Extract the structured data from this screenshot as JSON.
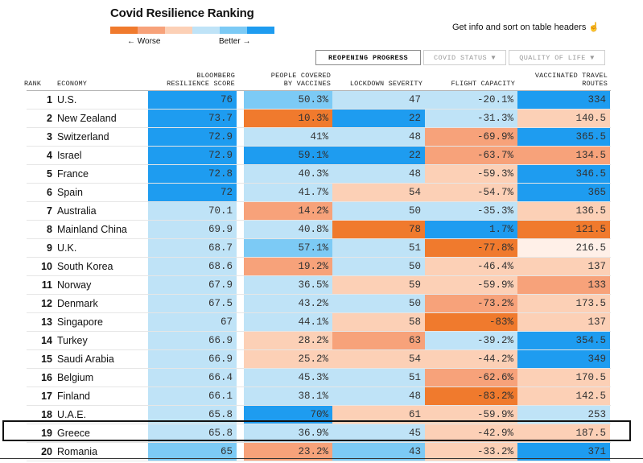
{
  "title": "Covid Resilience Ranking",
  "legend": {
    "worse_label": "← Worse",
    "better_label": "Better →",
    "colors": [
      "#f07a2d",
      "#f7a27a",
      "#fcd0b6",
      "#bfe3f7",
      "#7ccaf5",
      "#1e9cf0"
    ]
  },
  "hint": "Get info and sort on table headers",
  "hint_icon": "pointer-hand-icon",
  "tabs": [
    {
      "label": "REOPENING PROGRESS",
      "active": true
    },
    {
      "label": "COVID STATUS ▼",
      "active": false
    },
    {
      "label": "QUALITY OF LIFE ▼",
      "active": false
    }
  ],
  "columns": {
    "rank": "RANK",
    "economy": "ECONOMY",
    "score_l1": "BLOOMBERG",
    "score_l2": "RESILIENCE SCORE",
    "vacc_l1": "PEOPLE COVERED",
    "vacc_l2": "BY VACCINES",
    "lockdown": "LOCKDOWN SEVERITY",
    "flight": "FLIGHT CAPACITY",
    "routes_l1": "VACCINATED TRAVEL",
    "routes_l2": "ROUTES"
  },
  "chart_data": {
    "type": "table",
    "title": "Covid Resilience Ranking",
    "highlighted_rank": 19,
    "rows": [
      {
        "rank": "1",
        "economy": "U.S.",
        "score": "76",
        "vaccines": "50.3%",
        "lockdown": "47",
        "flight": "-20.1%",
        "routes": "334",
        "colors": [
          "#1e9cf0",
          "#7ccaf5",
          "#bfe3f7",
          "#bfe3f7",
          "#1e9cf0"
        ]
      },
      {
        "rank": "2",
        "economy": "New Zealand",
        "score": "73.7",
        "vaccines": "10.3%",
        "lockdown": "22",
        "flight": "-31.3%",
        "routes": "140.5",
        "colors": [
          "#1e9cf0",
          "#f07a2d",
          "#1e9cf0",
          "#bfe3f7",
          "#fcd0b6"
        ]
      },
      {
        "rank": "3",
        "economy": "Switzerland",
        "score": "72.9",
        "vaccines": "41%",
        "lockdown": "48",
        "flight": "-69.9%",
        "routes": "365.5",
        "colors": [
          "#1e9cf0",
          "#bfe3f7",
          "#bfe3f7",
          "#f7a27a",
          "#1e9cf0"
        ]
      },
      {
        "rank": "4",
        "economy": "Israel",
        "score": "72.9",
        "vaccines": "59.1%",
        "lockdown": "22",
        "flight": "-63.7%",
        "routes": "134.5",
        "colors": [
          "#1e9cf0",
          "#1e9cf0",
          "#1e9cf0",
          "#f7a27a",
          "#f7a27a"
        ]
      },
      {
        "rank": "5",
        "economy": "France",
        "score": "72.8",
        "vaccines": "40.3%",
        "lockdown": "48",
        "flight": "-59.3%",
        "routes": "346.5",
        "colors": [
          "#1e9cf0",
          "#bfe3f7",
          "#bfe3f7",
          "#fcd0b6",
          "#1e9cf0"
        ]
      },
      {
        "rank": "6",
        "economy": "Spain",
        "score": "72",
        "vaccines": "41.7%",
        "lockdown": "54",
        "flight": "-54.7%",
        "routes": "365",
        "colors": [
          "#1e9cf0",
          "#bfe3f7",
          "#fcd0b6",
          "#fcd0b6",
          "#1e9cf0"
        ]
      },
      {
        "rank": "7",
        "economy": "Australia",
        "score": "70.1",
        "vaccines": "14.2%",
        "lockdown": "50",
        "flight": "-35.3%",
        "routes": "136.5",
        "colors": [
          "#bfe3f7",
          "#f7a27a",
          "#bfe3f7",
          "#bfe3f7",
          "#fcd0b6"
        ]
      },
      {
        "rank": "8",
        "economy": "Mainland China",
        "score": "69.9",
        "vaccines": "40.8%",
        "lockdown": "78",
        "flight": "1.7%",
        "routes": "121.5",
        "colors": [
          "#bfe3f7",
          "#bfe3f7",
          "#f07a2d",
          "#1e9cf0",
          "#f07a2d"
        ]
      },
      {
        "rank": "9",
        "economy": "U.K.",
        "score": "68.7",
        "vaccines": "57.1%",
        "lockdown": "51",
        "flight": "-77.8%",
        "routes": "216.5",
        "colors": [
          "#bfe3f7",
          "#7ccaf5",
          "#bfe3f7",
          "#f07a2d",
          "#fff0e8"
        ]
      },
      {
        "rank": "10",
        "economy": "South Korea",
        "score": "68.6",
        "vaccines": "19.2%",
        "lockdown": "50",
        "flight": "-46.4%",
        "routes": "137",
        "colors": [
          "#bfe3f7",
          "#f7a27a",
          "#bfe3f7",
          "#fcd0b6",
          "#fcd0b6"
        ]
      },
      {
        "rank": "11",
        "economy": "Norway",
        "score": "67.9",
        "vaccines": "36.5%",
        "lockdown": "59",
        "flight": "-59.9%",
        "routes": "133",
        "colors": [
          "#bfe3f7",
          "#bfe3f7",
          "#fcd0b6",
          "#fcd0b6",
          "#f7a27a"
        ]
      },
      {
        "rank": "12",
        "economy": "Denmark",
        "score": "67.5",
        "vaccines": "43.2%",
        "lockdown": "50",
        "flight": "-73.2%",
        "routes": "173.5",
        "colors": [
          "#bfe3f7",
          "#bfe3f7",
          "#bfe3f7",
          "#f7a27a",
          "#fcd0b6"
        ]
      },
      {
        "rank": "13",
        "economy": "Singapore",
        "score": "67",
        "vaccines": "44.1%",
        "lockdown": "58",
        "flight": "-83%",
        "routes": "137",
        "colors": [
          "#bfe3f7",
          "#bfe3f7",
          "#fcd0b6",
          "#f07a2d",
          "#fcd0b6"
        ]
      },
      {
        "rank": "14",
        "economy": "Turkey",
        "score": "66.9",
        "vaccines": "28.2%",
        "lockdown": "63",
        "flight": "-39.2%",
        "routes": "354.5",
        "colors": [
          "#bfe3f7",
          "#fcd0b6",
          "#f7a27a",
          "#bfe3f7",
          "#1e9cf0"
        ]
      },
      {
        "rank": "15",
        "economy": "Saudi Arabia",
        "score": "66.9",
        "vaccines": "25.2%",
        "lockdown": "54",
        "flight": "-44.2%",
        "routes": "349",
        "colors": [
          "#bfe3f7",
          "#fcd0b6",
          "#fcd0b6",
          "#fcd0b6",
          "#1e9cf0"
        ]
      },
      {
        "rank": "16",
        "economy": "Belgium",
        "score": "66.4",
        "vaccines": "45.3%",
        "lockdown": "51",
        "flight": "-62.6%",
        "routes": "170.5",
        "colors": [
          "#bfe3f7",
          "#bfe3f7",
          "#bfe3f7",
          "#f7a27a",
          "#fcd0b6"
        ]
      },
      {
        "rank": "17",
        "economy": "Finland",
        "score": "66.1",
        "vaccines": "38.1%",
        "lockdown": "48",
        "flight": "-83.2%",
        "routes": "142.5",
        "colors": [
          "#bfe3f7",
          "#bfe3f7",
          "#bfe3f7",
          "#f07a2d",
          "#fcd0b6"
        ]
      },
      {
        "rank": "18",
        "economy": "U.A.E.",
        "score": "65.8",
        "vaccines": "70%",
        "lockdown": "61",
        "flight": "-59.9%",
        "routes": "253",
        "colors": [
          "#bfe3f7",
          "#1e9cf0",
          "#fcd0b6",
          "#fcd0b6",
          "#bfe3f7"
        ]
      },
      {
        "rank": "19",
        "economy": "Greece",
        "score": "65.8",
        "vaccines": "36.9%",
        "lockdown": "45",
        "flight": "-42.9%",
        "routes": "187.5",
        "colors": [
          "#bfe3f7",
          "#bfe3f7",
          "#bfe3f7",
          "#fcd0b6",
          "#fcd0b6"
        ]
      },
      {
        "rank": "20",
        "economy": "Romania",
        "score": "65",
        "vaccines": "23.2%",
        "lockdown": "43",
        "flight": "-33.2%",
        "routes": "371",
        "colors": [
          "#7ccaf5",
          "#f7a27a",
          "#7ccaf5",
          "#fcd0b6",
          "#1e9cf0"
        ]
      }
    ]
  }
}
